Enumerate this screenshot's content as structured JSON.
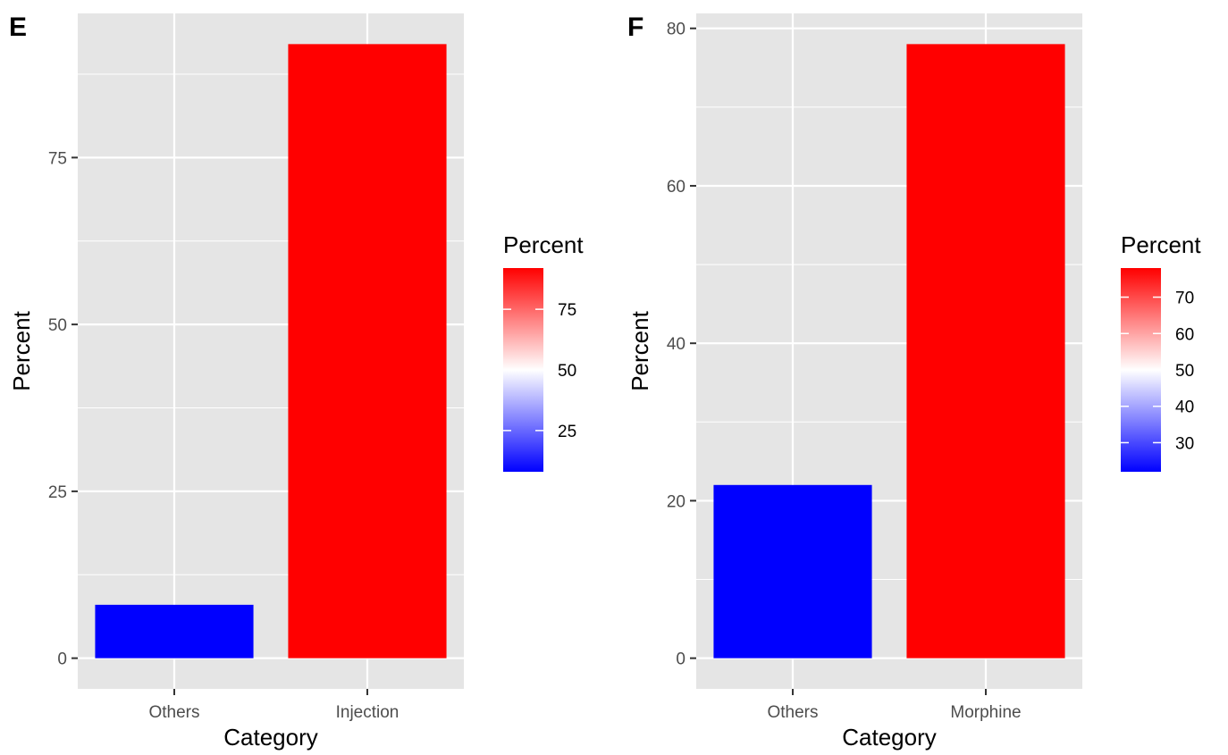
{
  "colors": {
    "panel_background": "#e5e5e5",
    "grid": "#ffffff",
    "low": "#0000ff",
    "mid": "#ffffff",
    "high": "#ff0000"
  },
  "chart_data": [
    {
      "panel_tag": "E",
      "type": "bar",
      "categories": [
        "Others",
        "Injection"
      ],
      "values": [
        8,
        92
      ],
      "xlabel": "Category",
      "ylabel": "Percent",
      "ylim": [
        -4.6,
        96.6
      ],
      "yticks": [
        0,
        25,
        50,
        75
      ],
      "grid": true,
      "legend": {
        "title": "Percent",
        "placement": "right",
        "type": "colorbar",
        "range": [
          8,
          92
        ],
        "midpoint": 50,
        "ticks": [
          25,
          50,
          75
        ]
      }
    },
    {
      "panel_tag": "F",
      "type": "bar",
      "categories": [
        "Others",
        "Morphine"
      ],
      "values": [
        22,
        78
      ],
      "xlabel": "Category",
      "ylabel": "Percent",
      "ylim": [
        -3.9,
        81.9
      ],
      "yticks": [
        0,
        20,
        40,
        60,
        80
      ],
      "grid": true,
      "legend": {
        "title": "Percent",
        "placement": "right",
        "type": "colorbar",
        "range": [
          22,
          78
        ],
        "midpoint": 50,
        "ticks": [
          30,
          40,
          50,
          60,
          70
        ]
      }
    }
  ]
}
